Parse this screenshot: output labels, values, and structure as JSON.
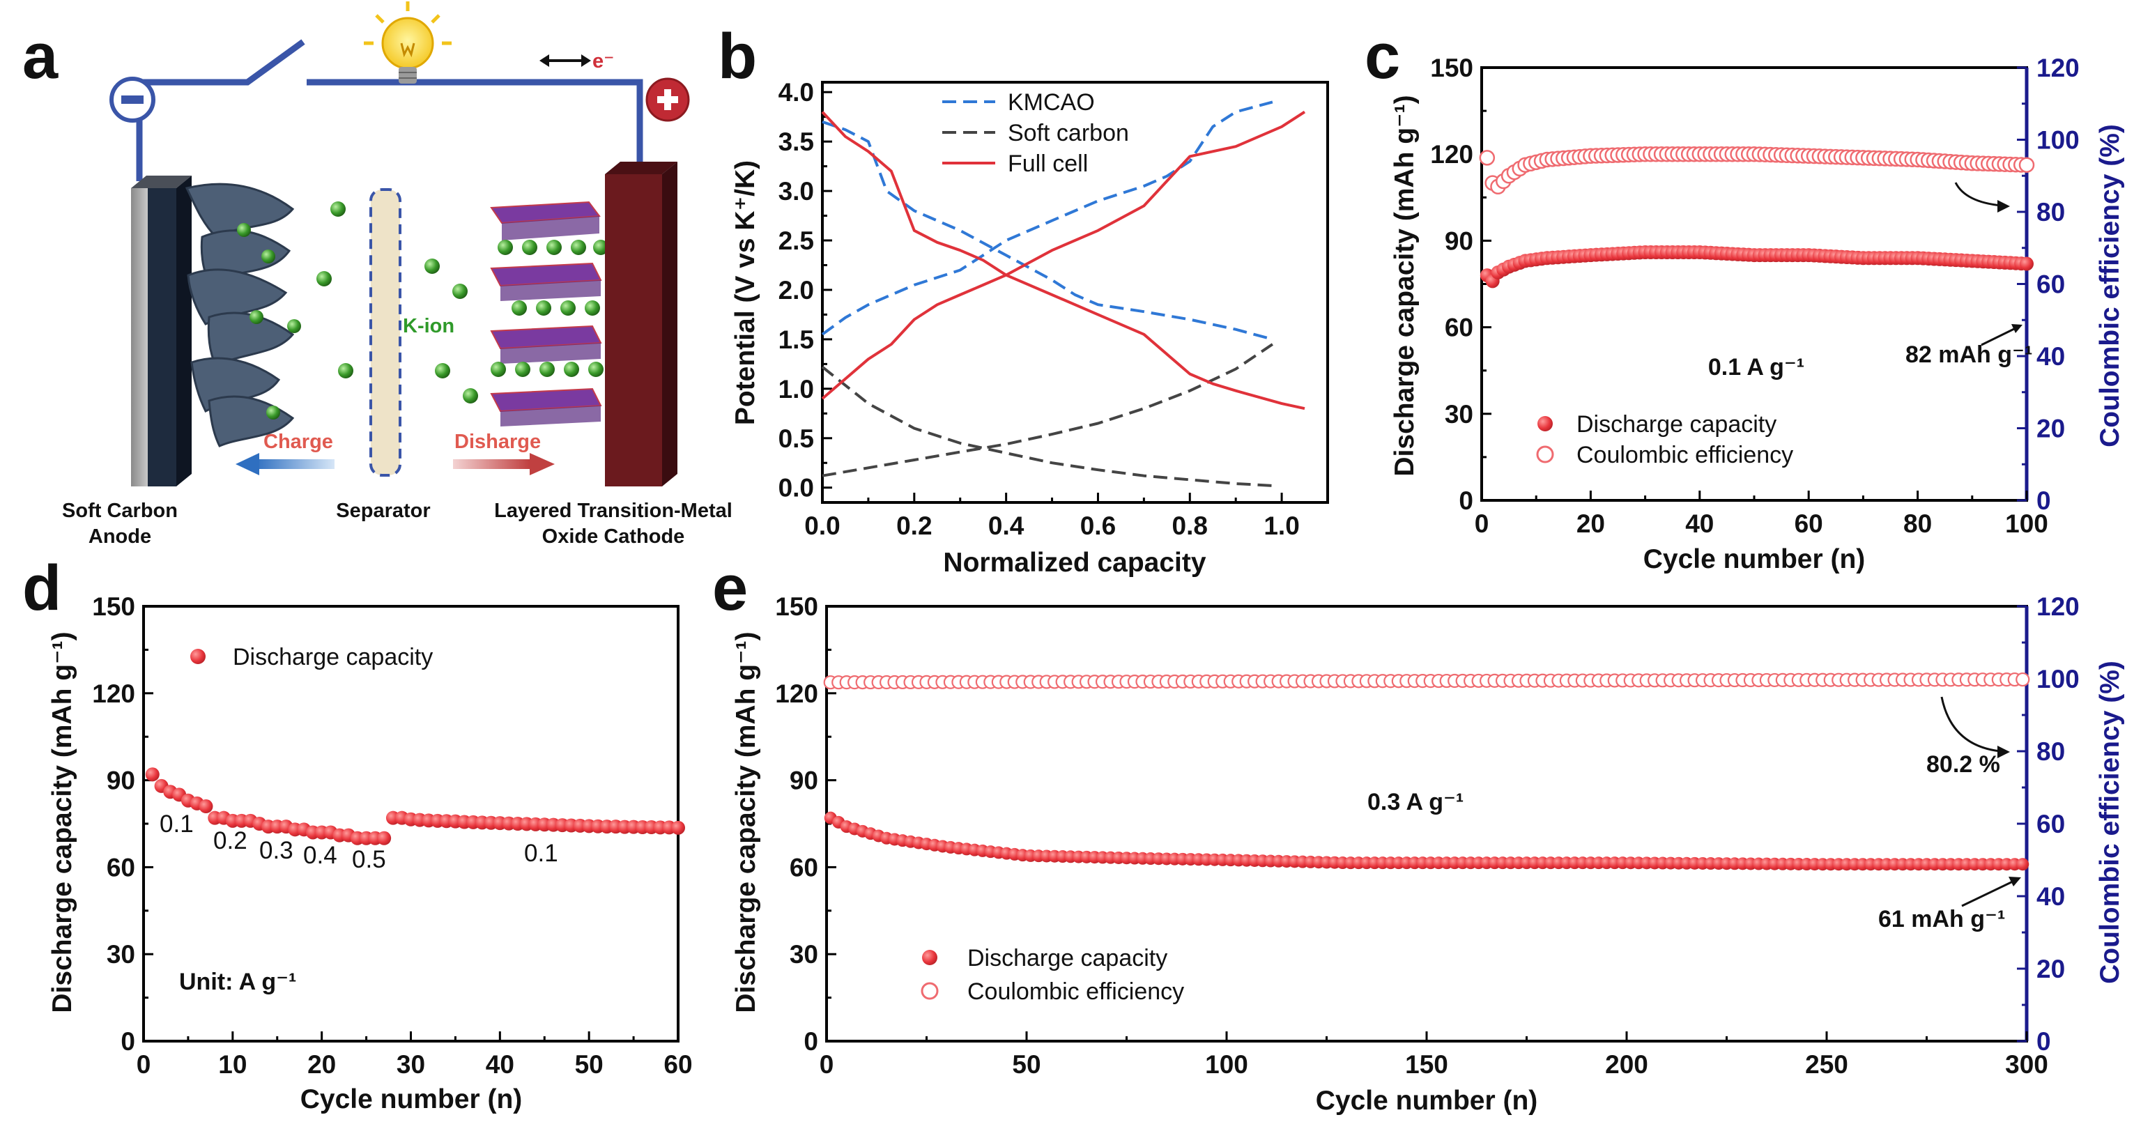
{
  "panel_labels": [
    "a",
    "b",
    "c",
    "d",
    "e"
  ],
  "schematic": {
    "electron_label": "e⁻",
    "kion_label": "K-ion",
    "charge_label": "Charge",
    "discharge_label": "Disharge",
    "anode_label_1": "Soft Carbon",
    "anode_label_2": "Anode",
    "separator_label": "Separator",
    "cathode_label_1": "Layered Transition-Metal",
    "cathode_label_2": "Oxide Cathode",
    "colors": {
      "anode": "#1e2b3e",
      "cathode": "#6b1a1e",
      "circuit": "#3a55a8",
      "ion": "#3a9a2a",
      "charge_arrow": "#2f6fc0",
      "discharge_arrow": "#c04040"
    }
  },
  "chart_data": [
    {
      "id": "b",
      "type": "line",
      "xlabel": "Normalized capacity",
      "ylabel": "Potential (V vs K⁺/K)",
      "xlim": [
        0,
        1.1
      ],
      "ylim": [
        -0.15,
        4.1
      ],
      "xticks": [
        "0.0",
        "0.2",
        "0.4",
        "0.6",
        "0.8",
        "1.0"
      ],
      "yticks": [
        "0.0",
        "0.5",
        "1.0",
        "1.5",
        "2.0",
        "2.5",
        "3.0",
        "3.5",
        "4.0"
      ],
      "legend": [
        "KMCAO",
        "Soft carbon",
        "Full cell"
      ],
      "series": [
        {
          "name": "KMCAO",
          "style": "dashed",
          "color": "#2f78d6",
          "x": [
            0,
            0.05,
            0.1,
            0.14,
            0.2,
            0.3,
            0.4,
            0.5,
            0.55,
            0.6,
            0.7,
            0.8,
            0.9,
            0.98
          ],
          "y": [
            3.7,
            3.62,
            3.5,
            3.0,
            2.8,
            2.6,
            2.35,
            2.1,
            1.95,
            1.85,
            1.78,
            1.7,
            1.6,
            1.5
          ]
        },
        {
          "name": "KMCAO",
          "style": "dashed",
          "color": "#2f78d6",
          "x": [
            0,
            0.05,
            0.1,
            0.2,
            0.3,
            0.35,
            0.4,
            0.5,
            0.6,
            0.7,
            0.75,
            0.8,
            0.85,
            0.9,
            0.98
          ],
          "y": [
            1.55,
            1.72,
            1.85,
            2.05,
            2.2,
            2.35,
            2.5,
            2.7,
            2.9,
            3.05,
            3.15,
            3.3,
            3.65,
            3.8,
            3.9
          ]
        },
        {
          "name": "Soft carbon",
          "style": "dashed",
          "color": "#444444",
          "x": [
            0,
            0.1,
            0.2,
            0.3,
            0.4,
            0.5,
            0.6,
            0.7,
            0.8,
            0.9,
            0.98
          ],
          "y": [
            1.22,
            0.85,
            0.6,
            0.45,
            0.35,
            0.25,
            0.18,
            0.12,
            0.08,
            0.04,
            0.02
          ]
        },
        {
          "name": "Soft carbon",
          "style": "dashed",
          "color": "#444444",
          "x": [
            0,
            0.1,
            0.2,
            0.3,
            0.4,
            0.5,
            0.6,
            0.7,
            0.8,
            0.9,
            0.98
          ],
          "y": [
            0.12,
            0.2,
            0.28,
            0.36,
            0.44,
            0.54,
            0.65,
            0.8,
            0.98,
            1.2,
            1.45
          ]
        },
        {
          "name": "Full cell",
          "style": "solid",
          "color": "#e0323a",
          "x": [
            0,
            0.05,
            0.1,
            0.15,
            0.2,
            0.25,
            0.3,
            0.35,
            0.4,
            0.5,
            0.6,
            0.7,
            0.75,
            0.8,
            0.85,
            0.9,
            1.0,
            1.05
          ],
          "y": [
            3.8,
            3.55,
            3.4,
            3.2,
            2.6,
            2.48,
            2.4,
            2.3,
            2.15,
            1.95,
            1.75,
            1.55,
            1.35,
            1.15,
            1.05,
            0.98,
            0.85,
            0.8
          ]
        },
        {
          "name": "Full cell",
          "style": "solid",
          "color": "#e0323a",
          "x": [
            0,
            0.05,
            0.1,
            0.15,
            0.2,
            0.25,
            0.3,
            0.35,
            0.4,
            0.5,
            0.6,
            0.7,
            0.75,
            0.78,
            0.8,
            0.85,
            0.9,
            1.0,
            1.05
          ],
          "y": [
            0.9,
            1.1,
            1.3,
            1.45,
            1.7,
            1.85,
            1.95,
            2.05,
            2.15,
            2.4,
            2.6,
            2.85,
            3.1,
            3.25,
            3.35,
            3.4,
            3.45,
            3.65,
            3.8
          ]
        }
      ]
    },
    {
      "id": "c",
      "type": "scatter",
      "xlabel": "Cycle number (n)",
      "ylabel": "Discharge capacity (mAh g⁻¹)",
      "y2label": "Coulombic efficiency (%)",
      "xlim": [
        0,
        100
      ],
      "ylim": [
        0,
        150
      ],
      "y2lim": [
        0,
        120
      ],
      "xticks": [
        "0",
        "20",
        "40",
        "60",
        "80",
        "100"
      ],
      "yticks": [
        "0",
        "30",
        "60",
        "90",
        "120",
        "150"
      ],
      "y2ticks": [
        "0",
        "20",
        "40",
        "60",
        "80",
        "100",
        "120"
      ],
      "legend": [
        "Discharge capacity",
        "Coulombic efficiency"
      ],
      "annotations": {
        "rate": "0.1 A g⁻¹",
        "end_capacity": "82 mAh g⁻¹"
      },
      "capacity_keypoints": {
        "x": [
          1,
          2,
          3,
          5,
          8,
          12,
          20,
          30,
          40,
          50,
          60,
          70,
          80,
          90,
          100
        ],
        "y": [
          78,
          76,
          79,
          81,
          83,
          84,
          85,
          86,
          86,
          85,
          85,
          84,
          84,
          83,
          82
        ]
      },
      "ce_keypoints": {
        "x": [
          1,
          2,
          3,
          5,
          8,
          12,
          20,
          30,
          40,
          50,
          60,
          70,
          80,
          90,
          100
        ],
        "y": [
          95,
          88,
          87,
          90,
          93,
          94.5,
          95.5,
          96,
          96,
          96,
          95.5,
          95,
          94.5,
          93.5,
          93
        ]
      }
    },
    {
      "id": "d",
      "type": "scatter",
      "xlabel": "Cycle number (n)",
      "ylabel": "Discharge capacity (mAh g⁻¹)",
      "xlim": [
        0,
        60
      ],
      "ylim": [
        0,
        150
      ],
      "xticks": [
        "0",
        "10",
        "20",
        "30",
        "40",
        "50",
        "60"
      ],
      "yticks": [
        "0",
        "30",
        "60",
        "90",
        "120",
        "150"
      ],
      "legend": [
        "Discharge capacity"
      ],
      "unit_note": "Unit: A g⁻¹",
      "rate_labels": [
        "0.1",
        "0.2",
        "0.3",
        "0.4",
        "0.5",
        "0.1"
      ],
      "capacity": [
        92,
        88,
        86,
        85,
        83,
        82,
        81,
        77,
        77,
        76,
        76,
        76,
        75,
        74,
        74,
        74,
        73,
        73,
        72,
        72,
        72,
        71,
        71,
        70,
        70,
        70,
        70,
        77,
        77,
        76.5,
        76.3,
        76.1,
        76,
        75.9,
        75.8,
        75.6,
        75.5,
        75.4,
        75.3,
        75.2,
        75.1,
        75,
        74.9,
        74.8,
        74.7,
        74.6,
        74.5,
        74.4,
        74.3,
        74.2,
        74.1,
        74,
        74,
        73.9,
        73.9,
        73.8,
        73.8,
        73.7,
        73.7,
        73.6
      ]
    },
    {
      "id": "e",
      "type": "scatter",
      "xlabel": "Cycle number (n)",
      "ylabel": "Discharge capacity (mAh g⁻¹)",
      "y2label": "Coulombic efficiency (%)",
      "xlim": [
        0,
        300
      ],
      "ylim": [
        0,
        150
      ],
      "y2lim": [
        0,
        120
      ],
      "xticks": [
        "0",
        "50",
        "100",
        "150",
        "200",
        "250",
        "300"
      ],
      "yticks": [
        "0",
        "30",
        "60",
        "90",
        "120",
        "150"
      ],
      "y2ticks": [
        "0",
        "20",
        "40",
        "60",
        "80",
        "100",
        "120"
      ],
      "legend": [
        "Discharge capacity",
        "Coulombic efficiency"
      ],
      "annotations": {
        "rate": "0.3 A g⁻¹",
        "retention": "80.2 %",
        "end_capacity": "61 mAh g⁻¹"
      },
      "capacity_keypoints": {
        "x": [
          1,
          5,
          15,
          30,
          50,
          80,
          100,
          130,
          160,
          200,
          250,
          300
        ],
        "y": [
          77,
          74,
          70,
          67,
          64,
          63,
          62.5,
          61.5,
          61.5,
          61.5,
          61,
          61
        ]
      },
      "ce_keypoints": {
        "x": [
          1,
          300
        ],
        "y": [
          99,
          99.8
        ]
      }
    }
  ]
}
